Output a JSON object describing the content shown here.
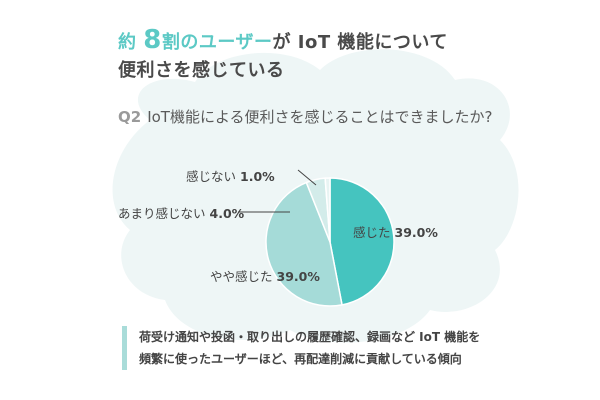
{
  "headline": {
    "line1_prefix": "約",
    "line1_num": "8",
    "line1_mid": "割のユーザー",
    "line1_suffix": "が IoT 機能について",
    "line2": "便利さを感じている"
  },
  "question": {
    "number": "Q2",
    "text": "IoT機能による便利さを感じることはできましたか?"
  },
  "colors": {
    "accent": "#5cc9c5",
    "cloud": "#eef6f6",
    "slice_strong": "#45c4bf",
    "slice_mid": "#a5dbd8",
    "slice_light": "#d3ecea",
    "slice_lightest": "#e8f4f3"
  },
  "chart_data": {
    "type": "pie",
    "title": "",
    "slices": [
      {
        "label": "感じた",
        "value": 39.0,
        "value_text": "39.0%"
      },
      {
        "label": "やや感じた",
        "value": 39.0,
        "value_text": "39.0%"
      },
      {
        "label": "あまり感じない",
        "value": 4.0,
        "value_text": "4.0%"
      },
      {
        "label": "感じない",
        "value": 1.0,
        "value_text": "1.0%"
      }
    ]
  },
  "note": {
    "line1": "荷受け通知や投函・取り出しの履歴確認、録画など IoT 機能を",
    "line2": "頻繁に使ったユーザーほど、再配達削減に貢献している傾向"
  }
}
